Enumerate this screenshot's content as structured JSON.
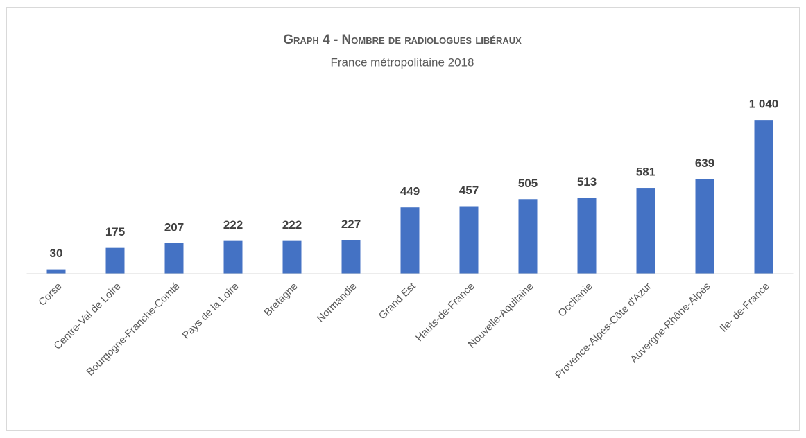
{
  "chart_data": {
    "type": "bar",
    "title": "Graph 4 - Nombre de radiologues libéraux",
    "subtitle": "France métropolitaine 2018",
    "categories": [
      "Corse",
      "Centre-Val de Loire",
      "Bourgogne-Franche-Comté",
      "Pays de la Loire",
      "Bretagne",
      "Normandie",
      "Grand Est",
      "Hauts-de-France",
      "Nouvelle-Aquitaine",
      "Occitanie",
      "Provence-Alpes-Côte d'Azur",
      "Auvergne-Rhône-Alpes",
      "Ile- de-France"
    ],
    "values": [
      30,
      175,
      207,
      222,
      222,
      227,
      449,
      457,
      505,
      513,
      581,
      639,
      1040
    ],
    "value_labels": [
      "30",
      "175",
      "207",
      "222",
      "222",
      "227",
      "449",
      "457",
      "505",
      "513",
      "581",
      "639",
      "1 040"
    ],
    "color": "#4472c4",
    "ylim": [
      0,
      1200
    ]
  }
}
